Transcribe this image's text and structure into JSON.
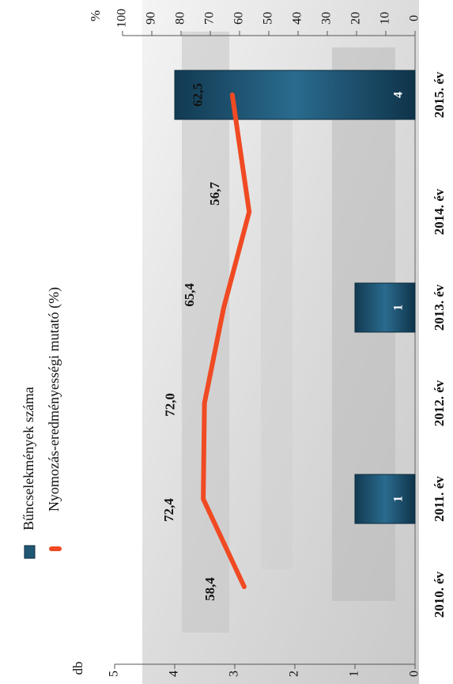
{
  "chart_data": {
    "type": "bar+line",
    "orientation": "rotated-90-clockwise",
    "categories": [
      "2010. év",
      "2011. év",
      "2012. év",
      "2013. év",
      "2014. év",
      "2015. év"
    ],
    "series": [
      {
        "name": "Bűncselekmények száma",
        "kind": "bar",
        "axis": "left",
        "values": [
          null,
          1,
          null,
          1,
          null,
          4
        ],
        "color": "#1f5673"
      },
      {
        "name": "Nyomozás-eredményességi mutató (%)",
        "kind": "line",
        "axis": "right",
        "values": [
          58.4,
          72.4,
          72.0,
          65.4,
          56.7,
          62.5
        ],
        "color": "#f04a23"
      }
    ],
    "bar_labels": [
      "",
      "1",
      "",
      "1",
      "",
      "4"
    ],
    "line_labels": [
      "58,4",
      "72,4",
      "72,0",
      "65,4",
      "56,7",
      "62,5"
    ],
    "left_axis": {
      "unit": "db",
      "range": [
        0,
        5
      ],
      "ticks": [
        "0",
        "1",
        "2",
        "3",
        "4",
        "5"
      ]
    },
    "right_axis": {
      "unit": "%",
      "range": [
        0,
        100
      ],
      "ticks": [
        "0",
        "10",
        "20",
        "30",
        "40",
        "50",
        "60",
        "70",
        "80",
        "90",
        "100"
      ]
    },
    "legend_position": "top-left",
    "grid": false
  }
}
